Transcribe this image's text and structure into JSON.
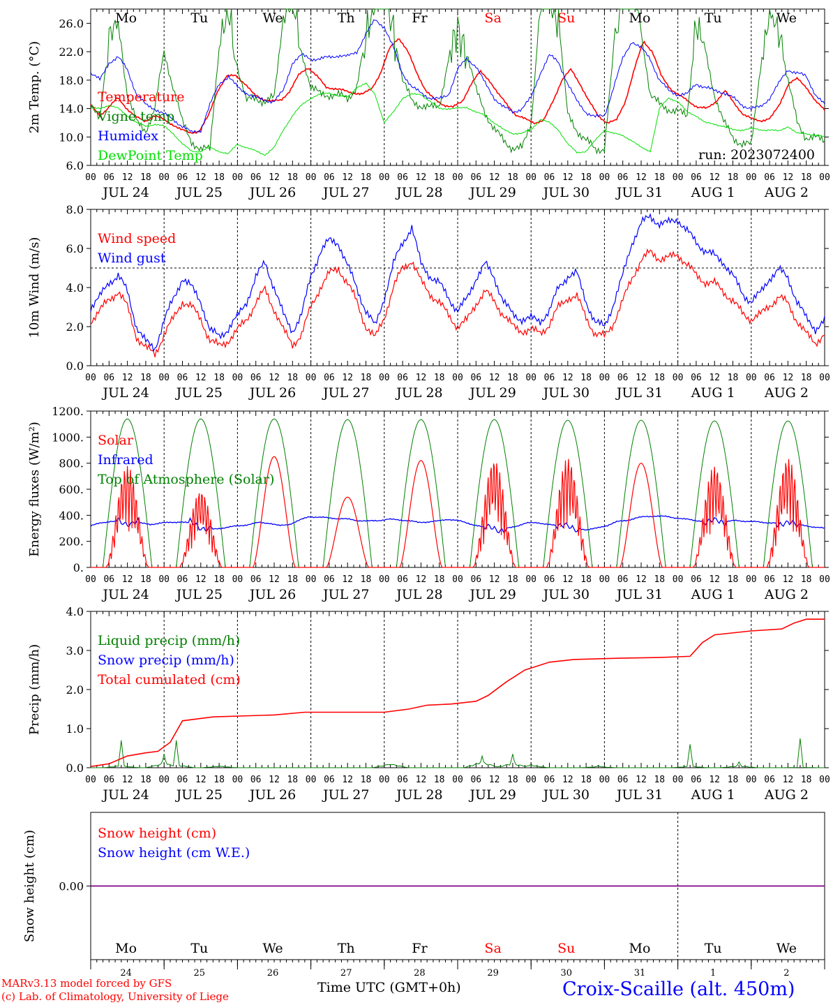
{
  "run_label": "run: 2023072400",
  "title_location": "Croix-Scaille (alt. 450m)",
  "credit_line1": "MARv3.13 model forced by GFS",
  "credit_line2": "(c) Lab. of Climatology, University of Liege",
  "xlabel_bottom": "Time UTC (GMT+0h)",
  "colors": {
    "red": "#ff0000",
    "blue": "#0000ff",
    "green": "#008000",
    "lightgreen": "#00e000",
    "purple": "#800080",
    "weekend": "#ff0000"
  },
  "days": {
    "names": [
      "Mo",
      "Tu",
      "We",
      "Th",
      "Fr",
      "Sa",
      "Su",
      "Mo",
      "Tu",
      "We"
    ],
    "dates": [
      "JUL 24",
      "JUL 25",
      "JUL 26",
      "JUL 27",
      "JUL 28",
      "JUL 29",
      "JUL 30",
      "JUL 31",
      "AUG  1",
      "AUG  2"
    ],
    "numbers": [
      "24",
      "25",
      "26",
      "27",
      "28",
      "29",
      "30",
      "31",
      "1",
      "2"
    ],
    "hour_ticks": [
      "00",
      "06",
      "12",
      "18"
    ],
    "weekend_index": [
      5,
      6
    ]
  },
  "chart_data": [
    {
      "type": "line",
      "ylabel": "2m Temp. (°C)",
      "ylim": [
        6,
        28
      ],
      "yticks": [
        "6.0",
        "10.0",
        "14.0",
        "18.0",
        "22.0",
        "26.0"
      ],
      "series": [
        {
          "name": "Temperature",
          "color": "#ff0000",
          "kind": "temp",
          "values": [
            14.5,
            13.0,
            14.2,
            15.5,
            14.0,
            12.8,
            12.2,
            13.0,
            12.5,
            11.8,
            11.0,
            10.6,
            10.8,
            13.0,
            16.5,
            18.5,
            18.7,
            17.5,
            16.0,
            15.3,
            15.0,
            15.2,
            16.5,
            18.8,
            19.8,
            18.5,
            17.0,
            16.8,
            16.5,
            16.2,
            16.0,
            16.8,
            19.0,
            22.5,
            24.0,
            22.0,
            19.0,
            16.5,
            15.2,
            14.5,
            14.2,
            15.0,
            17.5,
            19.2,
            18.0,
            16.0,
            14.5,
            13.0,
            12.5,
            12.0,
            12.3,
            15.0,
            18.0,
            19.5,
            17.5,
            15.0,
            13.0,
            12.0,
            12.3,
            15.0,
            19.5,
            23.5,
            22.0,
            18.5,
            16.8,
            15.8,
            15.0,
            14.2,
            14.0,
            15.0,
            16.5,
            14.8,
            13.2,
            12.5,
            12.3,
            12.6,
            14.5,
            17.5,
            18.2,
            17.0,
            15.0,
            13.8
          ]
        },
        {
          "name": "Vigne temp",
          "color": "#008000",
          "kind": "vigne",
          "values": [
            14.0,
            13.0,
            24.0,
            26.0,
            16.0,
            12.0,
            11.0,
            14.0,
            22.0,
            17.0,
            12.0,
            9.5,
            8.0,
            8.5,
            23.0,
            28.0,
            20.0,
            15.0,
            15.5,
            15.0,
            15.5,
            27.0,
            30.0,
            22.0,
            17.0,
            16.0,
            16.0,
            15.8,
            15.5,
            17.0,
            24.0,
            30.0,
            31.0,
            25.0,
            18.0,
            15.0,
            14.5,
            14.0,
            14.5,
            21.0,
            25.0,
            22.0,
            16.5,
            13.5,
            11.0,
            9.5,
            8.5,
            8.3,
            12.0,
            28.0,
            31.0,
            26.0,
            13.0,
            11.0,
            9.5,
            8.2,
            8.5,
            22.0,
            31.0,
            32.0,
            25.0,
            16.0,
            14.5,
            14.0,
            13.5,
            13.0,
            26.0,
            22.0,
            16.0,
            12.0,
            10.0,
            9.0,
            8.8,
            20.0,
            27.0,
            25.0,
            18.0,
            12.0,
            10.0,
            9.8,
            9.6
          ]
        },
        {
          "name": "Humidex",
          "color": "#0000ff",
          "kind": "humidex",
          "values": [
            19.0,
            18.0,
            20.5,
            21.2,
            19.5,
            16.0,
            14.5,
            14.0,
            13.2,
            12.5,
            11.5,
            10.6,
            11.0,
            14.5,
            17.5,
            18.5,
            17.0,
            16.2,
            15.5,
            15.2,
            15.0,
            16.5,
            20.5,
            21.5,
            21.0,
            21.0,
            21.2,
            21.5,
            21.3,
            22.0,
            24.5,
            26.5,
            25.5,
            22.5,
            19.0,
            17.0,
            16.2,
            15.5,
            15.3,
            16.0,
            19.5,
            21.0,
            20.0,
            17.5,
            15.5,
            14.2,
            13.5,
            14.0,
            15.5,
            19.0,
            21.5,
            20.5,
            17.5,
            15.0,
            13.5,
            12.8,
            13.0,
            17.0,
            21.0,
            23.5,
            22.5,
            21.0,
            18.0,
            16.5,
            16.0,
            16.0,
            17.5,
            17.0,
            16.5,
            16.3,
            15.5,
            14.5,
            14.0,
            14.2,
            15.5,
            17.5,
            19.5,
            19.0,
            18.5,
            16.0,
            14.5
          ]
        },
        {
          "name": "DewPoint Temp",
          "color": "#00e000",
          "kind": "dew",
          "values": [
            14.0,
            14.0,
            14.5,
            14.0,
            13.0,
            12.0,
            11.5,
            11.8,
            11.5,
            10.5,
            9.0,
            8.0,
            8.0,
            8.5,
            8.0,
            7.6,
            9.0,
            8.5,
            8.0,
            7.5,
            8.5,
            11.0,
            13.0,
            14.5,
            15.5,
            16.0,
            16.2,
            15.8,
            15.6,
            17.0,
            17.5,
            16.0,
            12.0,
            13.5,
            15.5,
            16.0,
            16.0,
            15.0,
            14.0,
            14.0,
            14.0,
            14.2,
            13.5,
            13.0,
            12.0,
            11.0,
            10.5,
            10.5,
            11.0,
            12.5,
            12.0,
            11.0,
            9.0,
            7.8,
            8.0,
            9.5,
            11.0,
            10.5,
            10.2,
            9.5,
            8.5,
            8.0,
            14.0,
            15.5,
            15.0,
            13.5,
            13.0,
            12.0,
            11.8,
            11.5,
            11.0,
            11.0,
            11.2,
            11.0,
            11.0,
            10.8,
            11.5,
            10.5,
            10.5,
            10.2,
            10.0
          ]
        }
      ],
      "legend": [
        "Temperature",
        "Vigne temp",
        "Humidex",
        "DewPoint Temp"
      ]
    },
    {
      "type": "line",
      "ylabel": "10m Wind (m/s)",
      "ylim": [
        0,
        8
      ],
      "yticks": [
        "0.0",
        "2.0",
        "4.0",
        "6.0",
        "8.0"
      ],
      "hline": 5,
      "series": [
        {
          "name": "Wind speed",
          "color": "#ff0000",
          "kind": "speed",
          "values": [
            2.3,
            2.8,
            3.4,
            3.8,
            3.0,
            1.5,
            0.9,
            0.6,
            1.6,
            2.4,
            3.3,
            3.0,
            2.4,
            1.3,
            1.0,
            1.3,
            1.8,
            2.4,
            3.2,
            3.9,
            2.9,
            1.8,
            1.1,
            1.6,
            3.0,
            4.0,
            4.7,
            5.0,
            4.2,
            3.3,
            2.0,
            1.4,
            2.5,
            4.0,
            5.0,
            5.4,
            4.3,
            3.7,
            3.2,
            2.6,
            2.0,
            2.3,
            3.2,
            3.8,
            3.3,
            2.6,
            2.0,
            1.8,
            1.8,
            1.7,
            2.1,
            3.0,
            3.5,
            3.5,
            2.5,
            1.6,
            1.5,
            2.2,
            3.3,
            4.5,
            5.4,
            5.8,
            5.5,
            5.5,
            5.7,
            5.2,
            4.6,
            4.3,
            4.2,
            3.8,
            3.3,
            2.7,
            2.4,
            2.6,
            3.1,
            3.5,
            3.2,
            2.3,
            1.6,
            1.2,
            1.6
          ]
        },
        {
          "name": "Wind gust",
          "color": "#0000ff",
          "kind": "gust",
          "values": [
            3.0,
            3.5,
            4.3,
            4.6,
            3.8,
            2.0,
            1.2,
            0.9,
            2.3,
            3.4,
            4.5,
            4.0,
            3.3,
            1.8,
            1.5,
            1.9,
            2.5,
            3.3,
            4.5,
            5.3,
            4.0,
            2.6,
            1.8,
            2.6,
            4.6,
            5.8,
            6.4,
            6.3,
            5.1,
            4.0,
            2.8,
            2.0,
            3.5,
            5.2,
            6.3,
            7.1,
            5.2,
            4.6,
            4.2,
            3.5,
            2.8,
            3.4,
            4.5,
            5.2,
            4.5,
            3.3,
            2.6,
            2.4,
            2.4,
            2.3,
            2.8,
            4.0,
            4.6,
            4.7,
            3.3,
            2.2,
            2.0,
            3.2,
            4.6,
            6.3,
            7.3,
            7.6,
            7.3,
            7.3,
            7.5,
            6.9,
            6.3,
            5.9,
            5.6,
            5.3,
            4.6,
            3.7,
            3.3,
            3.7,
            4.5,
            4.9,
            4.5,
            3.3,
            2.4,
            1.9,
            2.3
          ]
        }
      ],
      "legend": [
        "Wind speed",
        "Wind gust"
      ]
    },
    {
      "type": "line",
      "ylabel": "Energy fluxes (W/m²)",
      "ylim": [
        0,
        1200
      ],
      "yticks": [
        "0.",
        "200.",
        "400.",
        "600.",
        "800.",
        "1000.",
        "1200."
      ],
      "series": [
        {
          "name": "Solar",
          "color": "#ff0000",
          "kind": "solar",
          "daily_peak": [
            780,
            590,
            850,
            540,
            820,
            830,
            840,
            800,
            780,
            840
          ],
          "choppy": [
            1,
            1,
            0,
            0,
            0,
            1,
            1,
            0,
            1,
            1
          ]
        },
        {
          "name": "Infrared",
          "color": "#0000ff",
          "kind": "ir",
          "values": [
            320,
            340,
            355,
            350,
            345,
            340,
            330,
            340,
            345,
            350,
            340,
            320,
            290,
            300,
            310,
            320,
            330,
            345,
            340,
            320,
            330,
            360,
            390,
            385,
            380,
            375,
            370,
            360,
            355,
            360,
            370,
            365,
            360,
            345,
            350,
            355,
            370,
            360,
            340,
            320,
            300,
            290,
            300,
            320,
            340,
            345,
            330,
            320,
            310,
            300,
            290,
            300,
            320,
            350,
            360,
            380,
            390,
            395,
            390,
            380,
            370,
            360,
            355,
            350,
            350,
            360,
            355,
            350,
            345,
            340,
            335,
            330,
            320,
            310,
            300
          ]
        },
        {
          "name": "Top of Atmosphere (Solar)",
          "color": "#008000",
          "kind": "toa",
          "daily_peak": [
            1140,
            1140,
            1140,
            1135,
            1135,
            1135,
            1130,
            1130,
            1125,
            1125
          ]
        }
      ],
      "legend": [
        "Solar",
        "Infrared",
        "Top of Atmosphere (Solar)"
      ]
    },
    {
      "type": "line",
      "ylabel": "Precip (mm/h)",
      "ylim": [
        0,
        4
      ],
      "yticks": [
        "0.0",
        "1.0",
        "2.0",
        "3.0",
        "4.0"
      ],
      "series": [
        {
          "name": "Liquid precip (mm/h)",
          "color": "#008000",
          "kind": "liquid",
          "events": [
            [
              10,
              0.05,
              0.7
            ],
            [
              24,
              0.12,
              0.35
            ],
            [
              28,
              0.08,
              0.7
            ],
            [
              42,
              0.04,
              0.05
            ],
            [
              98,
              0.1,
              0.08
            ],
            [
              128,
              0.15,
              0.3
            ],
            [
              138,
              0.12,
              0.35
            ],
            [
              144,
              0.06,
              0.1
            ],
            [
              166,
              0.03,
              0.06
            ],
            [
              196,
              0.04,
              0.6
            ],
            [
              212,
              0.05,
              0.15
            ],
            [
              232,
              0.01,
              0.75
            ]
          ]
        },
        {
          "name": "Snow precip (mm/h)",
          "color": "#0000ff",
          "kind": "snow",
          "values": []
        },
        {
          "name": "Total cumulated (cm)",
          "color": "#ff0000",
          "kind": "cum",
          "points": [
            [
              0,
              0.03
            ],
            [
              6,
              0.1
            ],
            [
              12,
              0.3
            ],
            [
              18,
              0.38
            ],
            [
              22,
              0.42
            ],
            [
              26,
              0.65
            ],
            [
              30,
              1.2
            ],
            [
              40,
              1.3
            ],
            [
              60,
              1.35
            ],
            [
              70,
              1.42
            ],
            [
              96,
              1.42
            ],
            [
              104,
              1.5
            ],
            [
              110,
              1.6
            ],
            [
              118,
              1.63
            ],
            [
              126,
              1.7
            ],
            [
              130,
              1.85
            ],
            [
              136,
              2.2
            ],
            [
              142,
              2.5
            ],
            [
              150,
              2.7
            ],
            [
              158,
              2.77
            ],
            [
              172,
              2.8
            ],
            [
              186,
              2.82
            ],
            [
              196,
              2.85
            ],
            [
              200,
              3.2
            ],
            [
              204,
              3.4
            ],
            [
              216,
              3.5
            ],
            [
              226,
              3.55
            ],
            [
              230,
              3.7
            ],
            [
              234,
              3.8
            ],
            [
              240,
              3.8
            ]
          ]
        }
      ],
      "legend": [
        "Liquid precip (mm/h)",
        "Snow precip (mm/h)",
        "Total cumulated (cm)"
      ]
    },
    {
      "type": "line",
      "ylabel": "Snow height (cm)",
      "ytick": "0.00",
      "series": [
        {
          "name": "Snow height (cm)",
          "color": "#ff0000",
          "values": [
            0
          ]
        },
        {
          "name": "Snow height (cm W.E.)",
          "color": "#0000ff",
          "values": [
            0
          ]
        }
      ],
      "legend": [
        "Snow height (cm)",
        "Snow height (cm W.E.)"
      ]
    }
  ]
}
